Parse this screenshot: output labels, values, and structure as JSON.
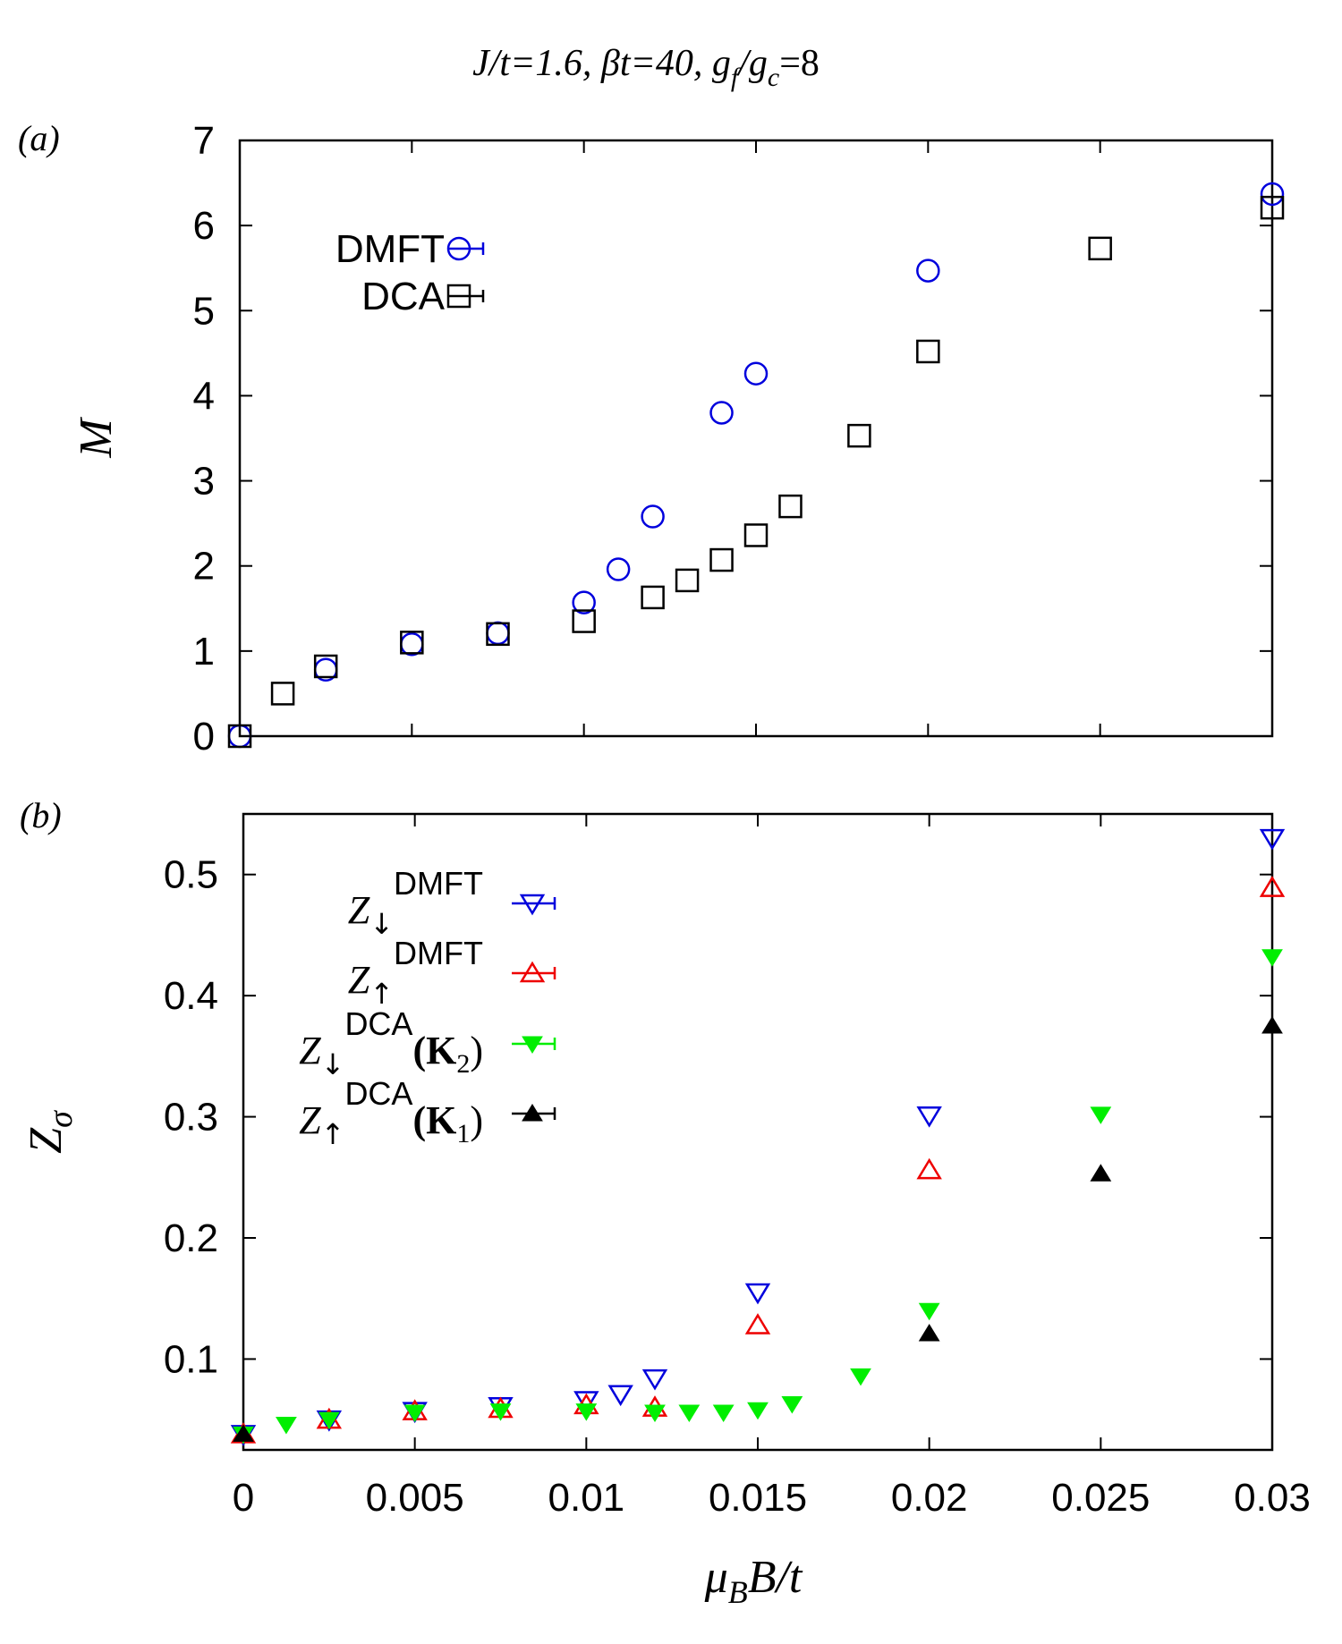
{
  "title": {
    "j_part": "J/t=1.6, βt=40, g",
    "f_sub": "f",
    "slash": "/g",
    "c_sub": "c",
    "tail": "=8"
  },
  "chart_data": [
    {
      "type": "scatter",
      "panel": "(a)",
      "ylabel": "M",
      "xlabel": "",
      "xlim": [
        0,
        0.03
      ],
      "ylim": [
        0,
        7
      ],
      "xticks": [
        "0",
        "0.005",
        "0.01",
        "0.015",
        "0.02",
        "0.025",
        "0.03"
      ],
      "yticks": [
        "0",
        "1",
        "2",
        "3",
        "4",
        "5",
        "6",
        "7"
      ],
      "legend_position": "top-left",
      "series": [
        {
          "name": "DMFT",
          "marker": "open-circle",
          "color": "#0000dd",
          "points": [
            [
              0,
              0
            ],
            [
              0.0025,
              0.78
            ],
            [
              0.005,
              1.08
            ],
            [
              0.0075,
              1.21
            ],
            [
              0.01,
              1.57
            ],
            [
              0.011,
              1.96
            ],
            [
              0.012,
              2.58
            ],
            [
              0.014,
              3.8
            ],
            [
              0.015,
              4.26
            ],
            [
              0.02,
              5.47
            ],
            [
              0.03,
              6.37
            ]
          ]
        },
        {
          "name": "DCA",
          "marker": "open-square",
          "color": "#000000",
          "points": [
            [
              0,
              0
            ],
            [
              0.00125,
              0.5
            ],
            [
              0.0025,
              0.82
            ],
            [
              0.005,
              1.1
            ],
            [
              0.0075,
              1.2
            ],
            [
              0.01,
              1.35
            ],
            [
              0.012,
              1.63
            ],
            [
              0.013,
              1.83
            ],
            [
              0.014,
              2.07
            ],
            [
              0.015,
              2.36
            ],
            [
              0.016,
              2.7
            ],
            [
              0.018,
              3.53
            ],
            [
              0.02,
              4.52
            ],
            [
              0.025,
              5.73
            ],
            [
              0.03,
              6.21
            ]
          ]
        }
      ]
    },
    {
      "type": "scatter",
      "panel": "(b)",
      "ylabel": "Z",
      "ylabel_sub": "σ",
      "xlabel": "μ",
      "xlabel_sub": "B",
      "xlabel_tail": "B/t",
      "xlim": [
        0,
        0.03
      ],
      "ylim": [
        0.025,
        0.55
      ],
      "xticks": [
        "0",
        "0.005",
        "0.01",
        "0.015",
        "0.02",
        "0.025",
        "0.03"
      ],
      "yticks": [
        "0.1",
        "0.2",
        "0.3",
        "0.4",
        "0.5"
      ],
      "legend_position": "top-left",
      "series": [
        {
          "name": "Z↓ DMFT",
          "label_main": "Z",
          "label_arrow": "↓",
          "label_sup": "DMFT",
          "label_k": "",
          "label_k_sub": "",
          "marker": "open-triangle-down",
          "color": "#0000dd",
          "points": [
            [
              0,
              0.038
            ],
            [
              0.0025,
              0.05
            ],
            [
              0.005,
              0.057
            ],
            [
              0.0075,
              0.061
            ],
            [
              0.01,
              0.066
            ],
            [
              0.011,
              0.071
            ],
            [
              0.012,
              0.084
            ],
            [
              0.015,
              0.155
            ],
            [
              0.02,
              0.301
            ],
            [
              0.03,
              0.53
            ]
          ]
        },
        {
          "name": "Z↑ DMFT",
          "label_main": "Z",
          "label_arrow": "↑",
          "label_sup": "DMFT",
          "label_k": "",
          "label_k_sub": "",
          "marker": "open-triangle-up",
          "color": "#ee0000",
          "points": [
            [
              0,
              0.038
            ],
            [
              0.0025,
              0.05
            ],
            [
              0.005,
              0.057
            ],
            [
              0.0075,
              0.059
            ],
            [
              0.01,
              0.062
            ],
            [
              0.012,
              0.06
            ],
            [
              0.015,
              0.128
            ],
            [
              0.02,
              0.256
            ],
            [
              0.03,
              0.489
            ]
          ]
        },
        {
          "name": "Z↓ DCA (K2)",
          "label_main": "Z",
          "label_arrow": "↓",
          "label_sup": "DCA",
          "label_k": "(K",
          "label_k_sub": "2",
          "marker": "filled-triangle-down",
          "color": "#00ee00",
          "points": [
            [
              0,
              0.038
            ],
            [
              0.00125,
              0.046
            ],
            [
              0.0025,
              0.05
            ],
            [
              0.005,
              0.056
            ],
            [
              0.0075,
              0.057
            ],
            [
              0.01,
              0.057
            ],
            [
              0.012,
              0.056
            ],
            [
              0.013,
              0.056
            ],
            [
              0.014,
              0.056
            ],
            [
              0.015,
              0.058
            ],
            [
              0.016,
              0.063
            ],
            [
              0.018,
              0.086
            ],
            [
              0.02,
              0.14
            ],
            [
              0.025,
              0.302
            ],
            [
              0.03,
              0.432
            ]
          ]
        },
        {
          "name": "Z↑ DCA (K1)",
          "label_main": "Z",
          "label_arrow": "↑",
          "label_sup": "DCA",
          "label_k": "(K",
          "label_k_sub": "1",
          "marker": "filled-triangle-up",
          "color": "#000000",
          "points": [
            [
              0,
              0.038
            ],
            [
              0.02,
              0.121
            ],
            [
              0.025,
              0.253
            ],
            [
              0.03,
              0.375
            ]
          ]
        }
      ]
    }
  ]
}
